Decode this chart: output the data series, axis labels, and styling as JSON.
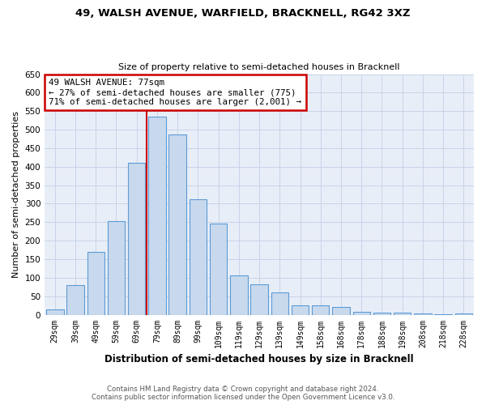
{
  "title": "49, WALSH AVENUE, WARFIELD, BRACKNELL, RG42 3XZ",
  "subtitle": "Size of property relative to semi-detached houses in Bracknell",
  "xlabel": "Distribution of semi-detached houses by size in Bracknell",
  "ylabel": "Number of semi-detached properties",
  "categories": [
    "29sqm",
    "39sqm",
    "49sqm",
    "59sqm",
    "69sqm",
    "79sqm",
    "89sqm",
    "99sqm",
    "109sqm",
    "119sqm",
    "129sqm",
    "139sqm",
    "149sqm",
    "158sqm",
    "168sqm",
    "178sqm",
    "188sqm",
    "198sqm",
    "208sqm",
    "218sqm",
    "228sqm"
  ],
  "values": [
    15,
    80,
    170,
    252,
    410,
    535,
    487,
    313,
    247,
    107,
    83,
    60,
    25,
    25,
    20,
    7,
    5,
    5,
    3,
    2,
    3
  ],
  "bar_color": "#c8d9ee",
  "bar_edge_color": "#5b9bd5",
  "annotation_title": "49 WALSH AVENUE: 77sqm",
  "annotation_line1": "← 27% of semi-detached houses are smaller (775)",
  "annotation_line2": "71% of semi-detached houses are larger (2,001) →",
  "annotation_box_color": "#ffffff",
  "annotation_box_edge": "#cc0000",
  "vline_color": "#cc0000",
  "vline_bin_index": 5,
  "ylim": [
    0,
    650
  ],
  "yticks": [
    0,
    50,
    100,
    150,
    200,
    250,
    300,
    350,
    400,
    450,
    500,
    550,
    600,
    650
  ],
  "grid_color": "#c8d4e8",
  "bg_color": "#e8eef8",
  "footer_line1": "Contains HM Land Registry data © Crown copyright and database right 2024.",
  "footer_line2": "Contains public sector information licensed under the Open Government Licence v3.0."
}
